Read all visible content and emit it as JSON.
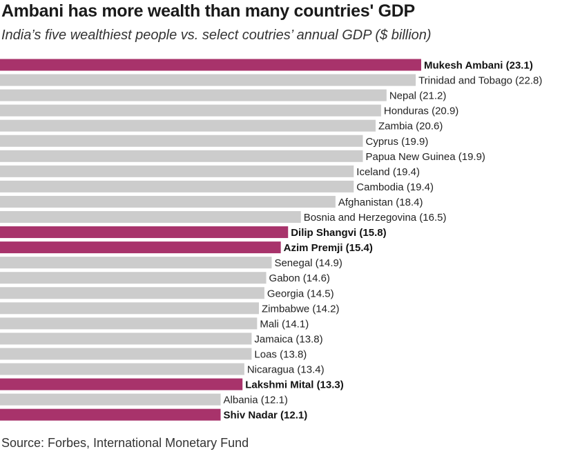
{
  "title": "Ambani has more wealth than many countries' GDP",
  "subtitle": "India’s five wealthiest people vs. select coutries’ annual GDP ($ billion)",
  "source": "Source: Forbes, International Monetary Fund",
  "colors": {
    "person": "#a8336b",
    "country": "#cccccc"
  },
  "chart_data": {
    "type": "bar",
    "orientation": "horizontal",
    "title": "Ambani has more wealth than many countries' GDP",
    "subtitle": "India’s five wealthiest people vs. select coutries’ annual GDP ($ billion)",
    "xlabel": "",
    "ylabel": "",
    "grid": false,
    "categories": [
      "Mukesh Ambani",
      "Trinidad and Tobago",
      "Nepal",
      "Honduras",
      "Zambia",
      "Cyprus",
      "Papua New Guinea",
      "Iceland",
      "Cambodia",
      "Afghanistan",
      "Bosnia and Herzegovina",
      "Dilip Shangvi",
      "Azim Premji",
      "Senegal",
      "Gabon",
      "Georgia",
      "Zimbabwe",
      "Mali",
      "Jamaica",
      "Loas",
      "Nicaragua",
      "Lakshmi Mital",
      "Albania",
      "Shiv Nadar"
    ],
    "values": [
      23.1,
      22.8,
      21.2,
      20.9,
      20.6,
      19.9,
      19.9,
      19.4,
      19.4,
      18.4,
      16.5,
      15.8,
      15.4,
      14.9,
      14.6,
      14.5,
      14.2,
      14.1,
      13.8,
      13.8,
      13.4,
      13.3,
      12.1,
      12.1
    ],
    "labels": [
      "Mukesh Ambani (23.1)",
      "Trinidad and Tobago (22.8)",
      "Nepal (21.2)",
      "Honduras (20.9)",
      "Zambia (20.6)",
      "Cyprus (19.9)",
      "Papua New Guinea (19.9)",
      "Iceland (19.4)",
      "Cambodia (19.4)",
      "Afghanistan (18.4)",
      "Bosnia and Herzegovina (16.5)",
      "Dilip Shangvi (15.8)",
      "Azim Premji (15.4)",
      "Senegal (14.9)",
      "Gabon (14.6)",
      "Georgia (14.5)",
      "Zimbabwe (14.2)",
      "Mali (14.1)",
      "Jamaica (13.8)",
      "Loas (13.8)",
      "Nicaragua (13.4)",
      "Lakshmi Mital (13.3)",
      "Albania (12.1)",
      "Shiv Nadar (12.1)"
    ],
    "highlight": [
      true,
      false,
      false,
      false,
      false,
      false,
      false,
      false,
      false,
      false,
      false,
      true,
      true,
      false,
      false,
      false,
      false,
      false,
      false,
      false,
      false,
      true,
      false,
      true
    ]
  }
}
